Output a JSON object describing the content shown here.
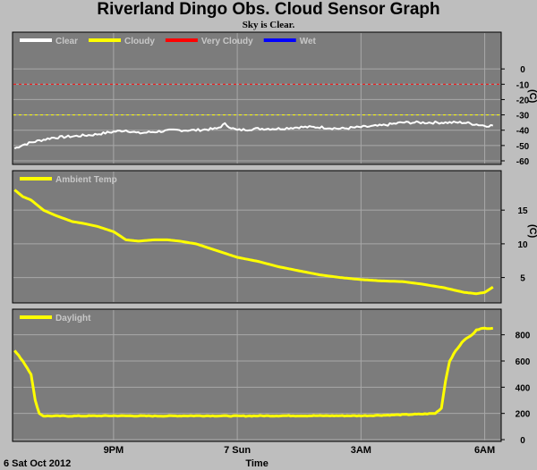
{
  "title": "Riverland Dingo Obs. Cloud Sensor Graph",
  "subtitle": "Sky is Clear.",
  "footer": {
    "date_label": "6 Sat Oct 2012",
    "time_label": "Time",
    "x_ticks": [
      "9PM",
      "7 Sun",
      "3AM",
      "6AM"
    ]
  },
  "colors": {
    "background": "#bebebe",
    "panel": "#7c7c7c",
    "clear": "#ffffff",
    "cloudy": "#ffff00",
    "very_cloudy": "#ff0000",
    "wet": "#0000ff",
    "ambient": "#ffff00",
    "daylight": "#ffff00"
  },
  "chart_data": [
    {
      "type": "line",
      "name": "sky-temperature",
      "legend": [
        {
          "label": "Clear",
          "color": "#ffffff"
        },
        {
          "label": "Cloudy",
          "color": "#ffff00"
        },
        {
          "label": "Very Cloudy",
          "color": "#ff0000"
        },
        {
          "label": "Wet",
          "color": "#0000ff"
        }
      ],
      "unit_label": "(C)",
      "ylim": [
        -60,
        10
      ],
      "yticks": [
        "0",
        "-10",
        "-20",
        "-30",
        "-40",
        "-50",
        "-60"
      ],
      "ytick_values": [
        0,
        -10,
        -20,
        -30,
        -40,
        -50,
        -60
      ],
      "thresholds": [
        {
          "series": "Very Cloudy",
          "value": -10,
          "color": "#ff0000"
        },
        {
          "series": "Cloudy",
          "value": -30,
          "color": "#ffff00"
        }
      ],
      "series": [
        {
          "name": "Clear",
          "color": "#ffffff",
          "x": [
            18.6,
            18.75,
            19.0,
            19.5,
            20.0,
            20.5,
            21.0,
            21.3,
            21.6,
            22.0,
            22.5,
            23.0,
            23.5,
            23.7,
            23.9,
            24.0,
            24.5,
            25.0,
            25.5,
            26.0,
            26.5,
            27.0,
            27.5,
            28.0,
            28.5,
            29.0,
            29.5,
            30.0,
            30.2
          ],
          "y": [
            -52,
            -50,
            -48,
            -45,
            -44,
            -43,
            -41,
            -40,
            -42,
            -41,
            -40,
            -40,
            -39,
            -36,
            -39,
            -40,
            -39,
            -39,
            -38,
            -38,
            -39,
            -38,
            -37,
            -35,
            -35,
            -35,
            -35,
            -37,
            -37
          ]
        }
      ],
      "grid": true
    },
    {
      "type": "line",
      "name": "ambient-temperature",
      "legend": [
        {
          "label": "Ambient Temp",
          "color": "#ffff00"
        }
      ],
      "unit_label": "(C)",
      "ylim": [
        1.5,
        19
      ],
      "yticks": [
        "15",
        "10",
        "5"
      ],
      "ytick_values": [
        15,
        10,
        5
      ],
      "series": [
        {
          "name": "Ambient Temp",
          "color": "#ffff00",
          "x": [
            18.6,
            18.8,
            19.0,
            19.3,
            19.6,
            20.0,
            20.3,
            20.6,
            21.0,
            21.3,
            21.6,
            22.0,
            22.3,
            22.6,
            23.0,
            23.5,
            24.0,
            24.5,
            25.0,
            25.5,
            26.0,
            26.5,
            27.0,
            27.5,
            28.0,
            28.5,
            29.0,
            29.5,
            29.8,
            30.0,
            30.2
          ],
          "y": [
            18,
            17,
            16.5,
            15,
            14.2,
            13.3,
            13,
            12.6,
            11.8,
            10.6,
            10.4,
            10.6,
            10.6,
            10.4,
            10,
            9,
            8,
            7.4,
            6.6,
            6,
            5.4,
            5,
            4.7,
            4.5,
            4.4,
            4,
            3.5,
            2.8,
            2.6,
            2.8,
            3.6
          ]
        }
      ],
      "grid": true
    },
    {
      "type": "line",
      "name": "daylight",
      "legend": [
        {
          "label": "Daylight",
          "color": "#ffff00"
        }
      ],
      "ylim": [
        0,
        900
      ],
      "yticks": [
        "800",
        "600",
        "400",
        "200",
        "0"
      ],
      "ytick_values": [
        800,
        600,
        400,
        200,
        0
      ],
      "series": [
        {
          "name": "Daylight",
          "color": "#ffff00",
          "x": [
            18.6,
            18.8,
            19.0,
            19.1,
            19.2,
            19.3,
            19.5,
            20.0,
            21.0,
            22.0,
            23.0,
            24.0,
            25.0,
            26.0,
            27.0,
            28.0,
            28.5,
            28.8,
            28.95,
            29.05,
            29.15,
            29.3,
            29.5,
            29.7,
            29.8,
            30.0,
            30.2
          ],
          "y": [
            680,
            600,
            500,
            300,
            200,
            180,
            180,
            180,
            182,
            180,
            182,
            180,
            182,
            182,
            182,
            190,
            195,
            200,
            240,
            450,
            600,
            680,
            760,
            800,
            840,
            850,
            850
          ]
        }
      ],
      "grid": true
    }
  ]
}
